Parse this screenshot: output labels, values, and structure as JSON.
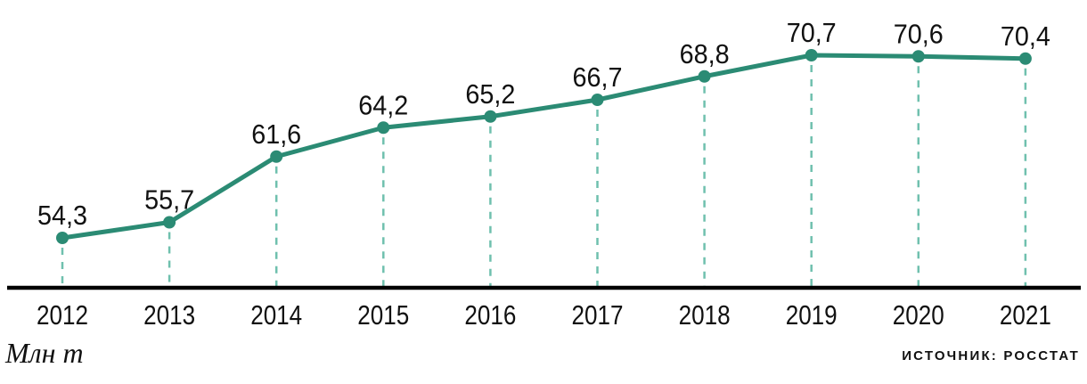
{
  "unit_label": "Млн т",
  "source_label": "ИСТОЧНИК: РОССТАТ",
  "chart_data": {
    "type": "line",
    "categories": [
      "2012",
      "2013",
      "2014",
      "2015",
      "2016",
      "2017",
      "2018",
      "2019",
      "2020",
      "2021"
    ],
    "values": [
      54.3,
      55.7,
      61.6,
      64.2,
      65.2,
      66.7,
      68.8,
      70.7,
      70.6,
      70.4
    ],
    "value_labels": [
      "54,3",
      "55,7",
      "61,6",
      "64,2",
      "65,2",
      "66,7",
      "68,8",
      "70,7",
      "70,6",
      "70,4"
    ],
    "title": "",
    "xlabel": "",
    "ylabel": "Млн т",
    "unit": "млн т",
    "ylim": [
      50,
      75
    ],
    "legend": "none",
    "grid": "vertical dashed drop-lines from each point to the x-axis",
    "colors": {
      "line": "#2b8b74",
      "marker": "#2b8b74",
      "drop_line": "#6fc0ae",
      "axis": "#000000",
      "text": "#111111"
    }
  }
}
